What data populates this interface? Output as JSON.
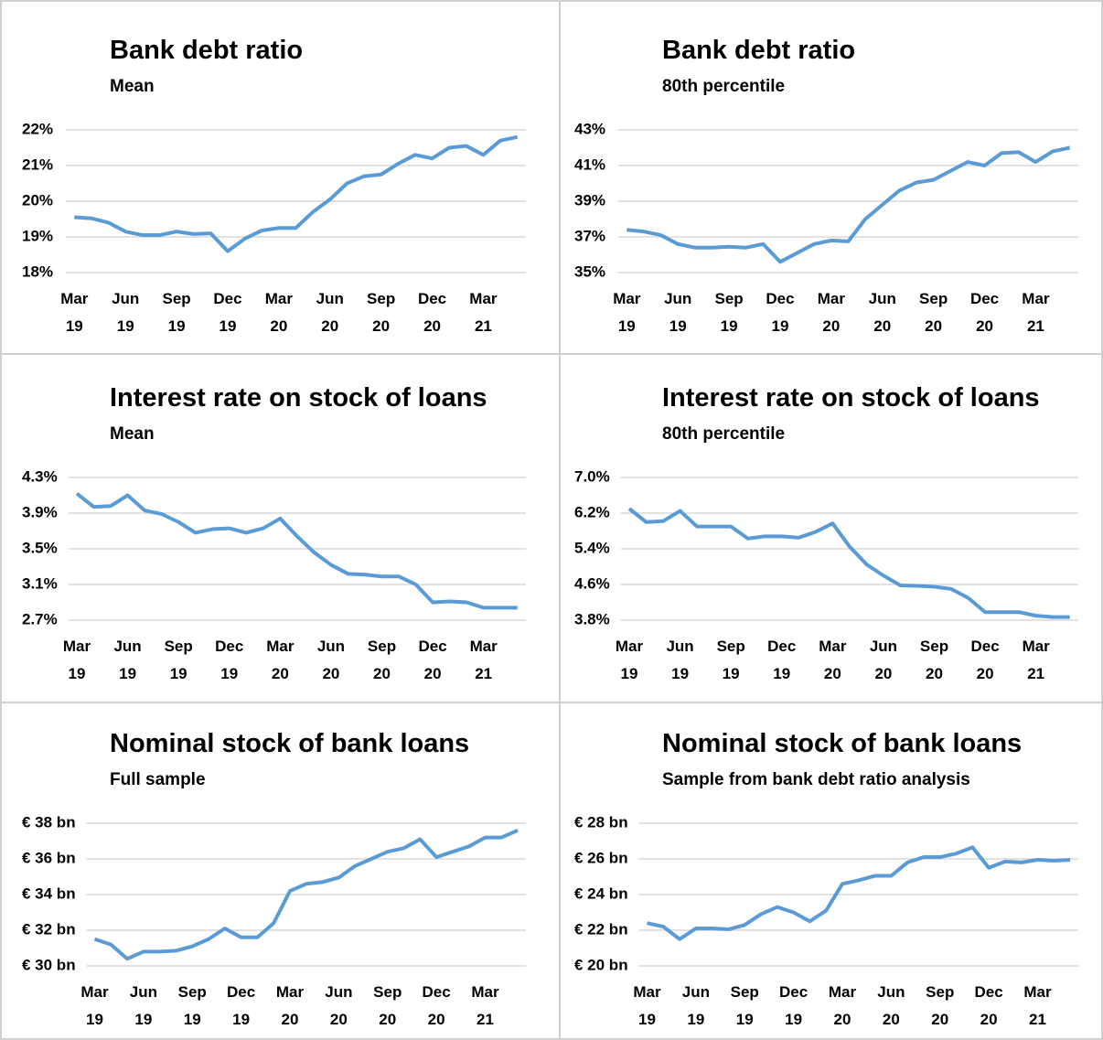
{
  "chart_data": [
    {
      "type": "line",
      "title": "Bank debt ratio",
      "subtitle": "Mean",
      "color": "#5b9bd5",
      "grid": true,
      "categories": [
        "Mar 19",
        null,
        null,
        "Jun 19",
        null,
        null,
        "Sep 19",
        null,
        null,
        "Dec 19",
        null,
        null,
        "Mar 20",
        null,
        null,
        "Jun 20",
        null,
        null,
        "Sep 20",
        null,
        null,
        "Dec 20",
        null,
        null,
        "Mar 21",
        null,
        null
      ],
      "values": [
        19.55,
        19.52,
        19.4,
        19.15,
        19.05,
        19.05,
        19.15,
        19.08,
        19.1,
        18.6,
        18.95,
        19.18,
        19.25,
        19.25,
        19.7,
        20.05,
        20.5,
        20.7,
        20.75,
        21.05,
        21.3,
        21.2,
        21.5,
        21.55,
        21.3,
        21.7,
        21.8
      ],
      "ylim": [
        18,
        22
      ],
      "yticks": [
        {
          "value": 18,
          "label": "18%"
        },
        {
          "value": 19,
          "label": "19%"
        },
        {
          "value": 20,
          "label": "20%"
        },
        {
          "value": 21,
          "label": "21%"
        },
        {
          "value": 22,
          "label": "22%"
        }
      ]
    },
    {
      "type": "line",
      "title": "Bank debt ratio",
      "subtitle": "80th percentile",
      "color": "#5b9bd5",
      "grid": true,
      "categories": [
        "Mar 19",
        null,
        null,
        "Jun 19",
        null,
        null,
        "Sep 19",
        null,
        null,
        "Dec 19",
        null,
        null,
        "Mar 20",
        null,
        null,
        "Jun 20",
        null,
        null,
        "Sep 20",
        null,
        null,
        "Dec 20",
        null,
        null,
        "Mar 21",
        null,
        null
      ],
      "values": [
        37.4,
        37.3,
        37.1,
        36.6,
        36.4,
        36.4,
        36.45,
        36.4,
        36.6,
        35.6,
        36.1,
        36.6,
        36.8,
        36.75,
        38.0,
        38.8,
        39.6,
        40.05,
        40.2,
        40.7,
        41.2,
        41.0,
        41.7,
        41.75,
        41.2,
        41.8,
        42.0
      ],
      "ylim": [
        35,
        43
      ],
      "yticks": [
        {
          "value": 35,
          "label": "35%"
        },
        {
          "value": 37,
          "label": "37%"
        },
        {
          "value": 39,
          "label": "39%"
        },
        {
          "value": 41,
          "label": "41%"
        },
        {
          "value": 43,
          "label": "43%"
        }
      ]
    },
    {
      "type": "line",
      "title": "Interest rate on stock of loans",
      "subtitle": "Mean",
      "color": "#5b9bd5",
      "grid": true,
      "categories": [
        "Mar 19",
        null,
        null,
        "Jun 19",
        null,
        null,
        "Sep 19",
        null,
        null,
        "Dec 19",
        null,
        null,
        "Mar 20",
        null,
        null,
        "Jun 20",
        null,
        null,
        "Sep 20",
        null,
        null,
        "Dec 20",
        null,
        null,
        "Mar 21",
        null,
        null
      ],
      "values": [
        4.12,
        3.97,
        3.98,
        4.1,
        3.93,
        3.89,
        3.8,
        3.68,
        3.72,
        3.73,
        3.68,
        3.73,
        3.84,
        3.64,
        3.46,
        3.32,
        3.22,
        3.21,
        3.19,
        3.19,
        3.1,
        2.9,
        2.91,
        2.9,
        2.84,
        2.84,
        2.84
      ],
      "ylim": [
        2.7,
        4.3
      ],
      "yticks": [
        {
          "value": 2.7,
          "label": "2.7%"
        },
        {
          "value": 3.1,
          "label": "3.1%"
        },
        {
          "value": 3.5,
          "label": "3.5%"
        },
        {
          "value": 3.9,
          "label": "3.9%"
        },
        {
          "value": 4.3,
          "label": "4.3%"
        }
      ]
    },
    {
      "type": "line",
      "title": "Interest rate on stock of loans",
      "subtitle": "80th percentile",
      "color": "#5b9bd5",
      "grid": true,
      "categories": [
        "Mar 19",
        null,
        null,
        "Jun 19",
        null,
        null,
        "Sep 19",
        null,
        null,
        "Dec 19",
        null,
        null,
        "Mar 20",
        null,
        null,
        "Jun 20",
        null,
        null,
        "Sep 20",
        null,
        null,
        "Dec 20",
        null,
        null,
        "Mar 21",
        null,
        null
      ],
      "values": [
        6.3,
        6.0,
        6.02,
        6.25,
        5.9,
        5.9,
        5.9,
        5.63,
        5.68,
        5.68,
        5.65,
        5.78,
        5.97,
        5.45,
        5.05,
        4.8,
        4.58,
        4.57,
        4.55,
        4.5,
        4.3,
        3.98,
        3.98,
        3.98,
        3.9,
        3.87,
        3.87
      ],
      "ylim": [
        3.8,
        7.0
      ],
      "yticks": [
        {
          "value": 3.8,
          "label": "3.8%"
        },
        {
          "value": 4.6,
          "label": "4.6%"
        },
        {
          "value": 5.4,
          "label": "5.4%"
        },
        {
          "value": 6.2,
          "label": "6.2%"
        },
        {
          "value": 7.0,
          "label": "7.0%"
        }
      ]
    },
    {
      "type": "line",
      "title": "Nominal stock of bank loans",
      "subtitle": "Full sample",
      "color": "#5b9bd5",
      "grid": true,
      "categories": [
        "Mar 19",
        null,
        null,
        "Jun 19",
        null,
        null,
        "Sep 19",
        null,
        null,
        "Dec 19",
        null,
        null,
        "Mar 20",
        null,
        null,
        "Jun 20",
        null,
        null,
        "Sep 20",
        null,
        null,
        "Dec 20",
        null,
        null,
        "Mar 21",
        null,
        null
      ],
      "values": [
        31.5,
        31.2,
        30.4,
        30.8,
        30.8,
        30.85,
        31.1,
        31.5,
        32.1,
        31.6,
        31.6,
        32.4,
        34.2,
        34.6,
        34.7,
        34.95,
        35.6,
        36.0,
        36.4,
        36.6,
        37.1,
        36.1,
        36.4,
        36.7,
        37.2,
        37.2,
        37.6
      ],
      "ylim": [
        30,
        38
      ],
      "yticks": [
        {
          "value": 30,
          "label": "€ 30 bn"
        },
        {
          "value": 32,
          "label": "€ 32 bn"
        },
        {
          "value": 34,
          "label": "€ 34 bn"
        },
        {
          "value": 36,
          "label": "€ 36 bn"
        },
        {
          "value": 38,
          "label": "€ 38 bn"
        }
      ]
    },
    {
      "type": "line",
      "title": "Nominal stock of bank loans",
      "subtitle": "Sample from bank debt ratio analysis",
      "color": "#5b9bd5",
      "grid": true,
      "categories": [
        "Mar 19",
        null,
        null,
        "Jun 19",
        null,
        null,
        "Sep 19",
        null,
        null,
        "Dec 19",
        null,
        null,
        "Mar 20",
        null,
        null,
        "Jun 20",
        null,
        null,
        "Sep 20",
        null,
        null,
        "Dec 20",
        null,
        null,
        "Mar 21",
        null,
        null
      ],
      "values": [
        22.4,
        22.2,
        21.5,
        22.1,
        22.1,
        22.05,
        22.3,
        22.9,
        23.3,
        23.0,
        22.5,
        23.1,
        24.6,
        24.8,
        25.05,
        25.05,
        25.8,
        26.1,
        26.1,
        26.3,
        26.65,
        25.5,
        25.85,
        25.8,
        25.95,
        25.9,
        25.95
      ],
      "ylim": [
        20,
        28
      ],
      "yticks": [
        {
          "value": 20,
          "label": "€ 20 bn"
        },
        {
          "value": 22,
          "label": "€ 22 bn"
        },
        {
          "value": 24,
          "label": "€ 24 bn"
        },
        {
          "value": 26,
          "label": "€ 26 bn"
        },
        {
          "value": 28,
          "label": "€ 28 bn"
        }
      ]
    }
  ]
}
